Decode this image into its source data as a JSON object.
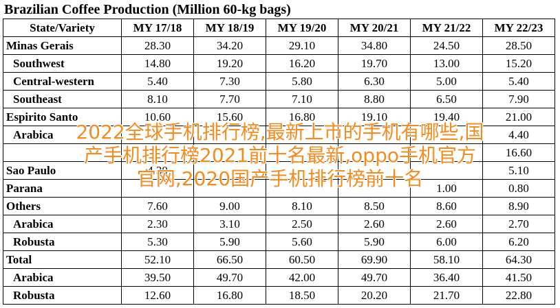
{
  "title": "Brazilian Coffee Production (Million 60-kg bags)",
  "table": {
    "headers": [
      "State/Variety",
      "MY 17/18",
      "MY 18/19",
      "MY 19/20",
      "MY 20/21",
      "MY 21/22",
      "MY 22/23"
    ],
    "rows": [
      {
        "label": "Minas Gerais",
        "level": 0,
        "values": [
          "28.30",
          "34.20",
          "29.10",
          "34.80",
          "24.50",
          "28.50"
        ]
      },
      {
        "label": "Southwest",
        "level": 1,
        "values": [
          "14.80",
          "19.20",
          "16.20",
          "19.70",
          "13.00",
          "15.20"
        ]
      },
      {
        "label": "Central-western",
        "level": 1,
        "values": [
          "5.40",
          "7.30",
          "5.80",
          "6.30",
          "5.00",
          "5.40"
        ]
      },
      {
        "label": "Southeast",
        "level": 1,
        "values": [
          "8.10",
          "7.70",
          "7.10",
          "8.80",
          "6.50",
          "7.90"
        ]
      },
      {
        "label": "Espirito Santo",
        "level": 0,
        "values": [
          "10.60",
          "15.60",
          "16.80",
          "19.10",
          "19.40",
          "21.00"
        ]
      },
      {
        "label": "Arabica",
        "level": 1,
        "values": [
          "",
          "",
          "",
          "",
          "",
          "4.40"
        ]
      },
      {
        "label": "",
        "level": 1,
        "values": [
          "",
          "",
          "",
          "",
          "",
          "16.60"
        ]
      },
      {
        "label": "Sao Paulo",
        "level": 0,
        "values": [
          "4.30",
          "",
          "",
          "",
          "",
          "5.10"
        ]
      },
      {
        "label": "Parana",
        "level": 0,
        "values": [
          "",
          "",
          "",
          "",
          "1.00",
          "0.80"
        ]
      },
      {
        "label": "Others",
        "level": 0,
        "values": [
          "7.60",
          "9.00",
          "8.10",
          "8.50",
          "8.60",
          "8.90"
        ]
      },
      {
        "label": "Arabica",
        "level": 1,
        "values": [
          "2.30",
          "3.10",
          "2.50",
          "2.60",
          "2.60",
          "2.70"
        ]
      },
      {
        "label": "Robusta",
        "level": 1,
        "values": [
          "5.30",
          "5.90",
          "5.60",
          "5.90",
          "6.00",
          "6.20"
        ]
      },
      {
        "label": "Total",
        "level": 0,
        "values": [
          "52.10",
          "66.50",
          "60.50",
          "69.90",
          "58.10",
          "64.30"
        ]
      },
      {
        "label": "Arabica",
        "level": 1,
        "values": [
          "39.50",
          "49.70",
          "42.00",
          "49.70",
          "36.40",
          "41.50"
        ]
      },
      {
        "label": "Robusta",
        "level": 1,
        "values": [
          "12.60",
          "16.80",
          "18.50",
          "20.20",
          "21.70",
          "22.80"
        ]
      }
    ]
  },
  "overlay": {
    "lines": [
      "2022全球手机排行榜,最新上市的手机有哪些,国",
      "产手机排行榜2021前十名最新,oppo手机官方",
      "官网,2020国产手机排行榜前十名"
    ],
    "color": "#f28c1e"
  }
}
